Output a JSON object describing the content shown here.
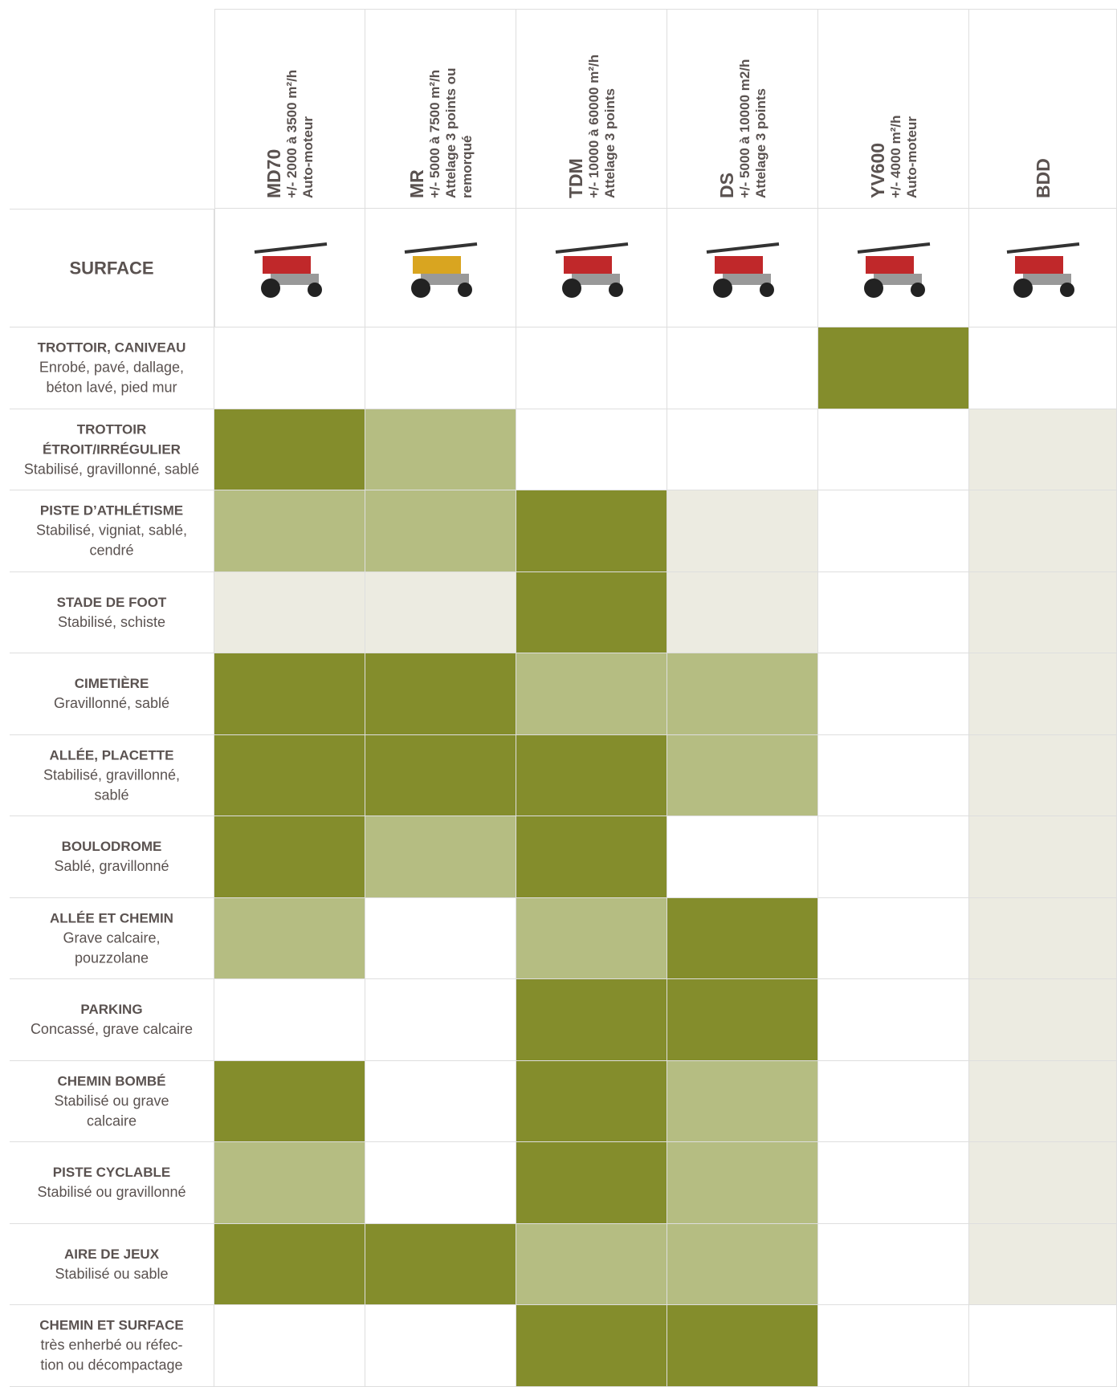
{
  "surface_header": "SURFACE",
  "columns": [
    {
      "name": "MD70",
      "lines": [
        "+/- 2000 à 3500 m²/h",
        "Auto-moteur"
      ]
    },
    {
      "name": "MR",
      "lines": [
        "+/- 5000 à 7500 m²/h",
        "Attelage 3 points ou",
        "remorqué"
      ]
    },
    {
      "name": "TDM",
      "lines": [
        "+/- 10000 à 60000 m²/h",
        "Attelage 3 points"
      ]
    },
    {
      "name": "DS",
      "lines": [
        "+/- 5000 à 10000 m2/h",
        "Attelage 3 points"
      ]
    },
    {
      "name": "YV600",
      "lines": [
        "+/- 4000 m²/h",
        "Auto-moteur"
      ]
    },
    {
      "name": "BDD",
      "lines": []
    }
  ],
  "rows": [
    {
      "title": [
        "TROTTOIR, CANIVEAU"
      ],
      "description": [
        "Enrobé, pavé, dallage,",
        "béton lavé, pied mur"
      ],
      "cells": [
        "#ffffff",
        "#ffffff",
        "#ffffff",
        "#ffffff",
        "#848d2c",
        "#ffffff"
      ]
    },
    {
      "title": [
        "TROTTOIR",
        "ÉTROIT/IRRÉGULIER"
      ],
      "description": [
        "Stabilisé, gravillonné, sablé"
      ],
      "cells": [
        "#848d2c",
        "#b5bd82",
        "#ffffff",
        "#ffffff",
        "#ffffff",
        "#ecebe1"
      ]
    },
    {
      "title": [
        "PISTE D’ATHLÉTISME"
      ],
      "description": [
        "Stabilisé, vigniat, sablé,",
        "cendré"
      ],
      "cells": [
        "#b5bd82",
        "#b5bd82",
        "#848d2c",
        "#ecebe1",
        "#ffffff",
        "#ecebe1"
      ]
    },
    {
      "title": [
        "STADE DE FOOT"
      ],
      "description": [
        "Stabilisé, schiste"
      ],
      "cells": [
        "#ecebe1",
        "#ecebe1",
        "#848d2c",
        "#ecebe1",
        "#ffffff",
        "#ecebe1"
      ]
    },
    {
      "title": [
        "CIMETIÈRE"
      ],
      "description": [
        "Gravillonné, sablé"
      ],
      "cells": [
        "#848d2c",
        "#848d2c",
        "#b5bd82",
        "#b5bd82",
        "#ffffff",
        "#ecebe1"
      ]
    },
    {
      "title": [
        "ALLÉE, PLACETTE"
      ],
      "description": [
        "Stabilisé, gravillonné,",
        "sablé"
      ],
      "cells": [
        "#848d2c",
        "#848d2c",
        "#848d2c",
        "#b5bd82",
        "#ffffff",
        "#ecebe1"
      ]
    },
    {
      "title": [
        "BOULODROME"
      ],
      "description": [
        "Sablé, gravillonné"
      ],
      "cells": [
        "#848d2c",
        "#b5bd82",
        "#848d2c",
        "#ffffff",
        "#ffffff",
        "#ecebe1"
      ]
    },
    {
      "title": [
        "ALLÉE ET CHEMIN"
      ],
      "description": [
        "Grave calcaire,",
        "pouzzolane"
      ],
      "cells": [
        "#b5bd82",
        "#ffffff",
        "#b5bd82",
        "#848d2c",
        "#ffffff",
        "#ecebe1"
      ]
    },
    {
      "title": [
        "PARKING"
      ],
      "description": [
        "Concassé, grave calcaire"
      ],
      "cells": [
        "#ffffff",
        "#ffffff",
        "#848d2c",
        "#848d2c",
        "#ffffff",
        "#ecebe1"
      ]
    },
    {
      "title": [
        "CHEMIN BOMBÉ"
      ],
      "description": [
        "Stabilisé ou grave",
        "calcaire"
      ],
      "cells": [
        "#848d2c",
        "#ffffff",
        "#848d2c",
        "#b5bd82",
        "#ffffff",
        "#ecebe1"
      ]
    },
    {
      "title": [
        "PISTE CYCLABLE"
      ],
      "description": [
        "Stabilisé ou gravillonné"
      ],
      "cells": [
        "#b5bd82",
        "#ffffff",
        "#848d2c",
        "#b5bd82",
        "#ffffff",
        "#ecebe1"
      ]
    },
    {
      "title": [
        "AIRE DE JEUX"
      ],
      "description": [
        "Stabilisé ou sable"
      ],
      "cells": [
        "#848d2c",
        "#848d2c",
        "#b5bd82",
        "#b5bd82",
        "#ffffff",
        "#ecebe1"
      ]
    },
    {
      "title": [
        "CHEMIN ET SURFACE"
      ],
      "description": [
        "très enherbé ou réfec-",
        "tion ou décompactage"
      ],
      "cells": [
        "#ffffff",
        "#ffffff",
        "#848d2c",
        "#848d2c",
        "#ffffff",
        "#ffffff"
      ]
    }
  ]
}
